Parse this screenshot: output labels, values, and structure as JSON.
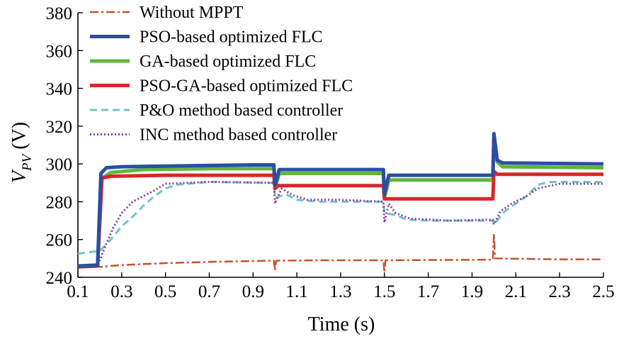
{
  "chart_data": {
    "type": "line",
    "xlabel": "Time (s)",
    "ylabel": {
      "main": "V",
      "sub": "PV",
      "unit": " (V)"
    },
    "xlim": [
      0.1,
      2.5
    ],
    "ylim": [
      240,
      380
    ],
    "x_ticks": [
      "0.1",
      "0.3",
      "0.5",
      "0.7",
      "0.9",
      "1.1",
      "1.3",
      "1.5",
      "1.7",
      "1.9",
      "2.1",
      "2.3",
      "2.5"
    ],
    "y_ticks": [
      "240",
      "260",
      "280",
      "300",
      "320",
      "340",
      "360",
      "380"
    ],
    "grid": false,
    "legend_position": "top-left",
    "series": [
      {
        "name": "Without MPPT",
        "color": "#c8502c",
        "style": "dash-dot",
        "points": [
          [
            0.1,
            245.5
          ],
          [
            0.2,
            245.5
          ],
          [
            0.3,
            246.5
          ],
          [
            0.5,
            247.5
          ],
          [
            0.7,
            248.2
          ],
          [
            0.9,
            248.6
          ],
          [
            0.995,
            248.8
          ],
          [
            1.0,
            243.5
          ],
          [
            1.005,
            248.8
          ],
          [
            1.2,
            249
          ],
          [
            1.495,
            249
          ],
          [
            1.5,
            242.5
          ],
          [
            1.505,
            249
          ],
          [
            1.8,
            249.2
          ],
          [
            1.995,
            249.3
          ],
          [
            2.0,
            263
          ],
          [
            2.005,
            250
          ],
          [
            2.3,
            249.5
          ],
          [
            2.5,
            249.5
          ]
        ]
      },
      {
        "name": "PSO-based optimized FLC",
        "color": "#2b4ea2",
        "style": "solid",
        "points": [
          [
            0.1,
            246
          ],
          [
            0.19,
            246.5
          ],
          [
            0.205,
            295
          ],
          [
            0.23,
            298
          ],
          [
            0.3,
            298.5
          ],
          [
            0.6,
            299
          ],
          [
            0.9,
            299.5
          ],
          [
            0.995,
            299.5
          ],
          [
            1.0,
            289
          ],
          [
            1.02,
            297
          ],
          [
            1.3,
            297
          ],
          [
            1.495,
            297
          ],
          [
            1.5,
            284
          ],
          [
            1.52,
            294
          ],
          [
            1.8,
            294
          ],
          [
            1.995,
            294
          ],
          [
            2.0,
            316
          ],
          [
            2.015,
            302
          ],
          [
            2.04,
            300.5
          ],
          [
            2.5,
            300
          ]
        ]
      },
      {
        "name": "GA-based optimized FLC",
        "color": "#5db83a",
        "style": "solid",
        "points": [
          [
            0.1,
            245.5
          ],
          [
            0.19,
            246
          ],
          [
            0.205,
            292
          ],
          [
            0.25,
            295.5
          ],
          [
            0.4,
            297
          ],
          [
            0.7,
            297.5
          ],
          [
            0.995,
            297.5
          ],
          [
            1.0,
            287
          ],
          [
            1.02,
            295
          ],
          [
            1.495,
            295
          ],
          [
            1.5,
            282
          ],
          [
            1.52,
            291.5
          ],
          [
            1.995,
            291.5
          ],
          [
            2.0,
            314
          ],
          [
            2.015,
            301
          ],
          [
            2.04,
            298.5
          ],
          [
            2.5,
            298
          ]
        ]
      },
      {
        "name": "PSO-GA-based optimized FLC",
        "color": "#d7282a",
        "style": "solid",
        "points": [
          [
            0.1,
            245.5
          ],
          [
            0.19,
            246
          ],
          [
            0.21,
            292.5
          ],
          [
            0.25,
            293.5
          ],
          [
            0.5,
            294
          ],
          [
            0.995,
            294
          ],
          [
            1.0,
            287
          ],
          [
            1.015,
            288.5
          ],
          [
            1.495,
            288.5
          ],
          [
            1.5,
            281.5
          ],
          [
            1.995,
            281.5
          ],
          [
            2.0,
            296
          ],
          [
            2.015,
            294.5
          ],
          [
            2.5,
            294.5
          ]
        ]
      },
      {
        "name": "P&O method based controller",
        "color": "#6fc4cc",
        "style": "dashed",
        "points": [
          [
            0.1,
            252.5
          ],
          [
            0.2,
            254
          ],
          [
            0.25,
            260
          ],
          [
            0.3,
            267
          ],
          [
            0.35,
            272
          ],
          [
            0.4,
            278
          ],
          [
            0.45,
            283
          ],
          [
            0.5,
            287
          ],
          [
            0.55,
            289
          ],
          [
            0.7,
            290.5
          ],
          [
            0.995,
            290
          ],
          [
            1.0,
            282
          ],
          [
            1.05,
            284
          ],
          [
            1.1,
            281
          ],
          [
            1.2,
            280
          ],
          [
            1.495,
            280
          ],
          [
            1.5,
            274
          ],
          [
            1.55,
            273
          ],
          [
            1.6,
            270.5
          ],
          [
            1.7,
            270
          ],
          [
            1.995,
            270
          ],
          [
            2.0,
            268
          ],
          [
            2.05,
            275
          ],
          [
            2.1,
            279
          ],
          [
            2.15,
            283
          ],
          [
            2.2,
            289
          ],
          [
            2.25,
            290.5
          ],
          [
            2.5,
            290.5
          ]
        ]
      },
      {
        "name": "INC method based controller",
        "color": "#8a3d9c",
        "style": "dotted",
        "points": [
          [
            0.1,
            245.5
          ],
          [
            0.19,
            246
          ],
          [
            0.22,
            255
          ],
          [
            0.26,
            266
          ],
          [
            0.3,
            274
          ],
          [
            0.35,
            280
          ],
          [
            0.4,
            283
          ],
          [
            0.45,
            286
          ],
          [
            0.5,
            289.5
          ],
          [
            0.7,
            290.5
          ],
          [
            0.995,
            290
          ],
          [
            1.0,
            279
          ],
          [
            1.03,
            287
          ],
          [
            1.08,
            283.5
          ],
          [
            1.15,
            281
          ],
          [
            1.3,
            281
          ],
          [
            1.495,
            280
          ],
          [
            1.5,
            269
          ],
          [
            1.52,
            279
          ],
          [
            1.55,
            274
          ],
          [
            1.62,
            271
          ],
          [
            1.8,
            270
          ],
          [
            1.995,
            270.5
          ],
          [
            2.0,
            268
          ],
          [
            2.03,
            275
          ],
          [
            2.08,
            279
          ],
          [
            2.15,
            283
          ],
          [
            2.2,
            287
          ],
          [
            2.3,
            289.5
          ],
          [
            2.5,
            289.5
          ]
        ]
      }
    ]
  }
}
